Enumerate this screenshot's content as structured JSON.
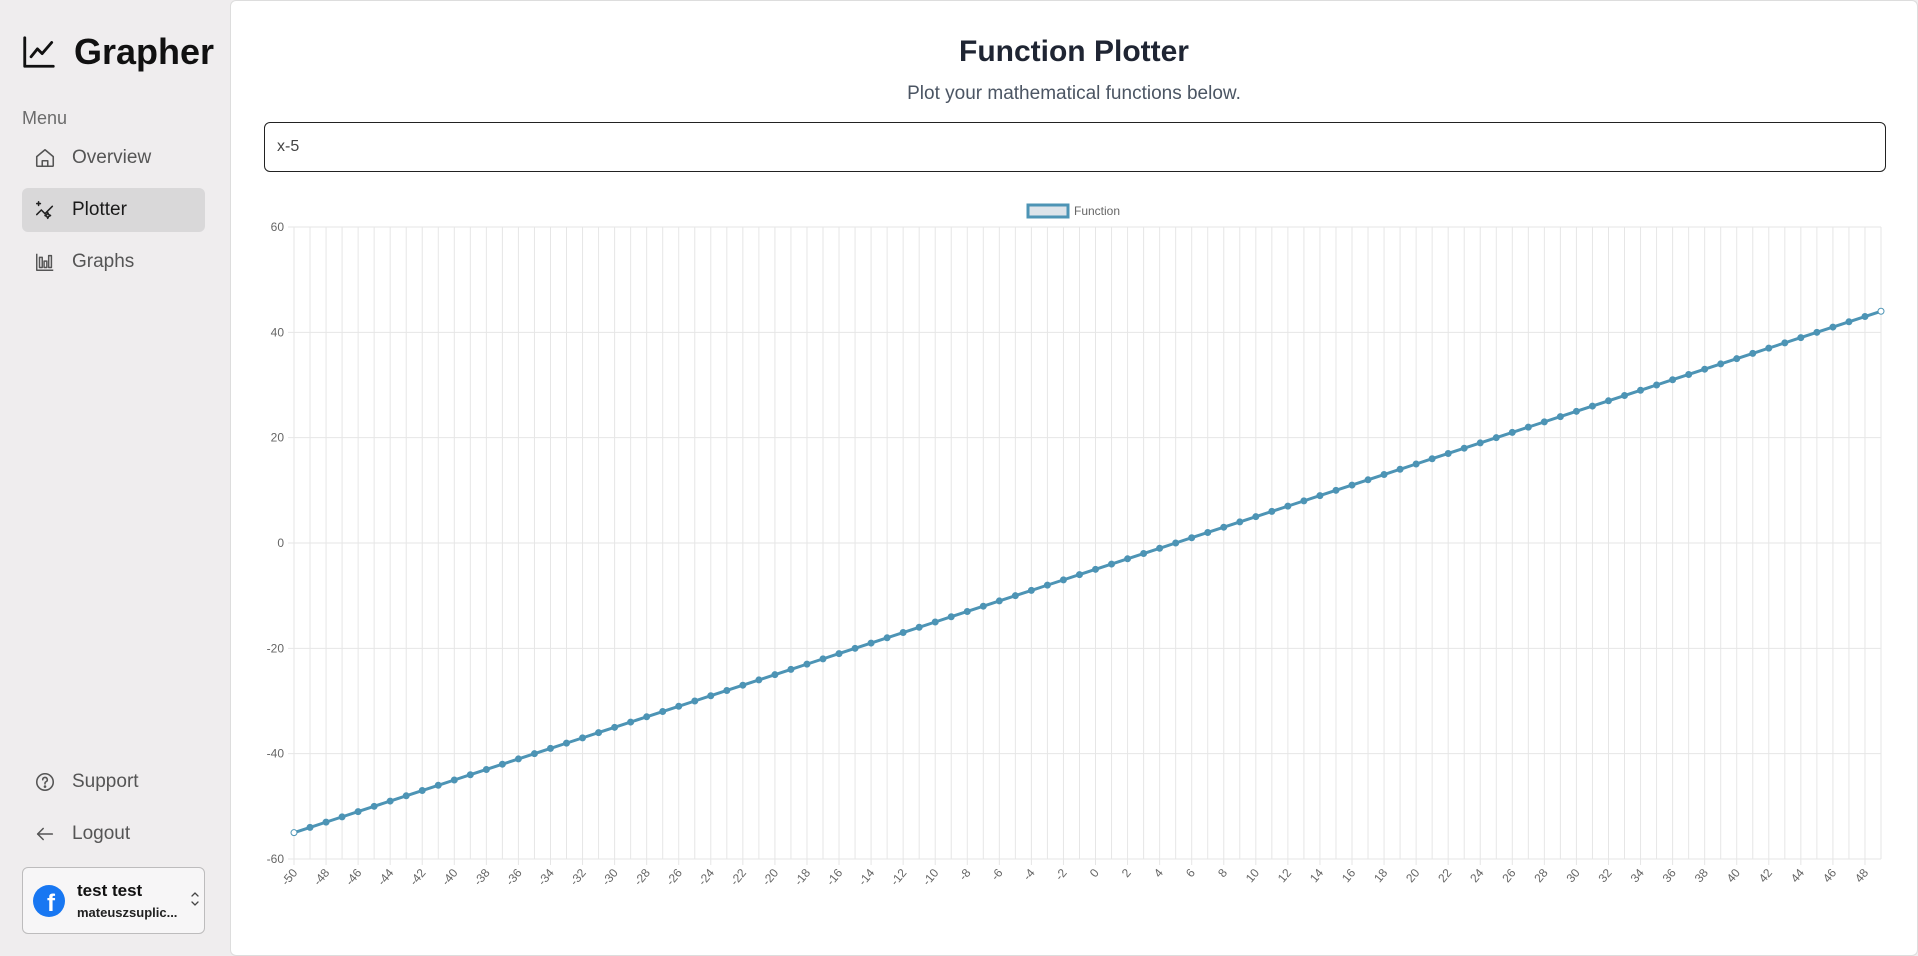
{
  "app": {
    "name": "Grapher",
    "menu_label": "Menu"
  },
  "sidebar": {
    "items": [
      {
        "label": "Overview",
        "icon": "home-icon",
        "active": false
      },
      {
        "label": "Plotter",
        "icon": "sparkle-chart-icon",
        "active": true
      },
      {
        "label": "Graphs",
        "icon": "bar-chart-icon",
        "active": false
      }
    ],
    "footer_items": [
      {
        "label": "Support",
        "icon": "help-circle-icon"
      },
      {
        "label": "Logout",
        "icon": "arrow-left-icon"
      }
    ],
    "user": {
      "name": "test test",
      "email": "mateuszsuplic..."
    }
  },
  "main": {
    "title": "Function Plotter",
    "subtitle": "Plot your mathematical functions below.",
    "input_value": "x-5"
  },
  "colors": {
    "series": "#4d94b5",
    "series_fill": "#dde4ea",
    "facebook": "#1877f2"
  },
  "chart_data": {
    "type": "line",
    "expression": "x-5",
    "legend": "Function",
    "legend_position": "top-center",
    "x_start": -50,
    "x_end": 49,
    "x_step": 1,
    "x_tick_labels": [
      "-50",
      "-48",
      "-46",
      "-44",
      "-42",
      "-40",
      "-38",
      "-36",
      "-34",
      "-32",
      "-30",
      "-28",
      "-26",
      "-24",
      "-22",
      "-20",
      "-18",
      "-16",
      "-14",
      "-12",
      "-10",
      "-8",
      "-6",
      "-4",
      "-2",
      "0",
      "2",
      "4",
      "6",
      "8",
      "10",
      "12",
      "14",
      "16",
      "18",
      "20",
      "22",
      "24",
      "26",
      "28",
      "30",
      "32",
      "34",
      "36",
      "38",
      "40",
      "42",
      "44",
      "46",
      "48"
    ],
    "y_ticks": [
      60,
      40,
      20,
      0,
      -20,
      -40,
      -60
    ],
    "ylim": [
      -60,
      60
    ],
    "grid": true,
    "series": [
      {
        "name": "Function",
        "slope": 1,
        "intercept": -5
      }
    ]
  }
}
